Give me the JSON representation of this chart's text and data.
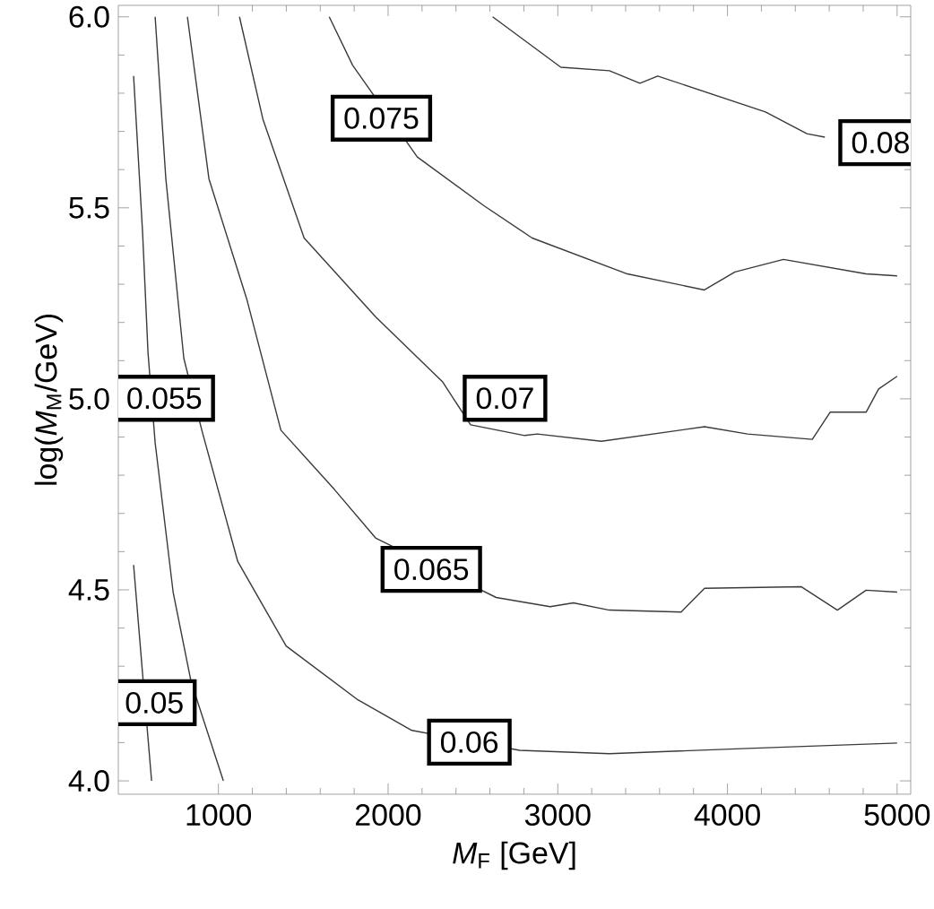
{
  "chart_data": {
    "type": "line",
    "xlabel": "*M*$_{F}$ [GeV]",
    "ylabel": "log(*M*$_{M}$/GeV)",
    "xlim": [
      410,
      5080
    ],
    "ylim": [
      3.965,
      6.03
    ],
    "xticks": [
      1000,
      2000,
      3000,
      4000,
      5000
    ],
    "yticks": [
      {
        "value": 4.0,
        "label": "4.0"
      },
      {
        "value": 4.5,
        "label": "4.5"
      },
      {
        "value": 5.0,
        "label": "5.0"
      },
      {
        "value": 5.5,
        "label": "5.5"
      },
      {
        "value": 6.0,
        "label": "6.0"
      }
    ],
    "grid": false,
    "marker": "none",
    "line_style": "solid",
    "series": [
      {
        "name": "0.05",
        "color": "#3a3a3a",
        "x": [
          500,
          553,
          606
        ],
        "values": [
          4.565,
          4.28,
          4.0
        ]
      },
      {
        "name": "0.055",
        "color": "#3a3a3a",
        "x": [
          500,
          553,
          585,
          627,
          733,
          839,
          1029
        ],
        "values": [
          5.845,
          5.435,
          5.12,
          4.885,
          4.494,
          4.259,
          4.0
        ]
      },
      {
        "name": "0.06",
        "color": "#3a3a3a",
        "x": [
          627,
          690,
          796,
          902,
          1114,
          1399,
          1822,
          2140,
          2775,
          3304,
          4118,
          5000
        ],
        "values": [
          6.0,
          5.576,
          5.106,
          4.918,
          4.574,
          4.353,
          4.212,
          4.132,
          4.08,
          4.071,
          4.085,
          4.099
        ]
      },
      {
        "name": "0.065",
        "color": "#3a3a3a",
        "x": [
          817,
          944,
          1167,
          1368,
          1685,
          1928,
          2637,
          2955,
          3092,
          3304,
          3727,
          3865,
          4436,
          4648,
          4817,
          5000
        ],
        "values": [
          6.0,
          5.576,
          5.261,
          4.918,
          4.762,
          4.635,
          4.48,
          4.456,
          4.466,
          4.447,
          4.442,
          4.504,
          4.508,
          4.447,
          4.499,
          4.494
        ]
      },
      {
        "name": "0.07",
        "color": "#3a3a3a",
        "x": [
          1124,
          1262,
          1505,
          1928,
          2320,
          2486,
          2805,
          2879,
          3257,
          3865,
          4118,
          4500,
          4605,
          4817,
          4891,
          5000
        ],
        "values": [
          6.0,
          5.732,
          5.421,
          5.214,
          5.045,
          4.932,
          4.904,
          4.908,
          4.889,
          4.927,
          4.908,
          4.894,
          4.965,
          4.965,
          5.026,
          5.059
        ]
      },
      {
        "name": "0.075",
        "color": "#3a3a3a",
        "x": [
          1653,
          1791,
          2172,
          2563,
          2849,
          3410,
          3864,
          4044,
          4330,
          4817,
          5000
        ],
        "values": [
          6.0,
          5.873,
          5.633,
          5.506,
          5.421,
          5.327,
          5.285,
          5.332,
          5.365,
          5.327,
          5.322
        ]
      },
      {
        "name": "0.08",
        "color": "#3a3a3a",
        "x": [
          2616,
          3018,
          3304,
          3484,
          3589,
          4224,
          4468,
          4574
        ],
        "values": [
          6.0,
          5.868,
          5.859,
          5.826,
          5.845,
          5.751,
          5.694,
          5.685
        ]
      }
    ]
  }
}
